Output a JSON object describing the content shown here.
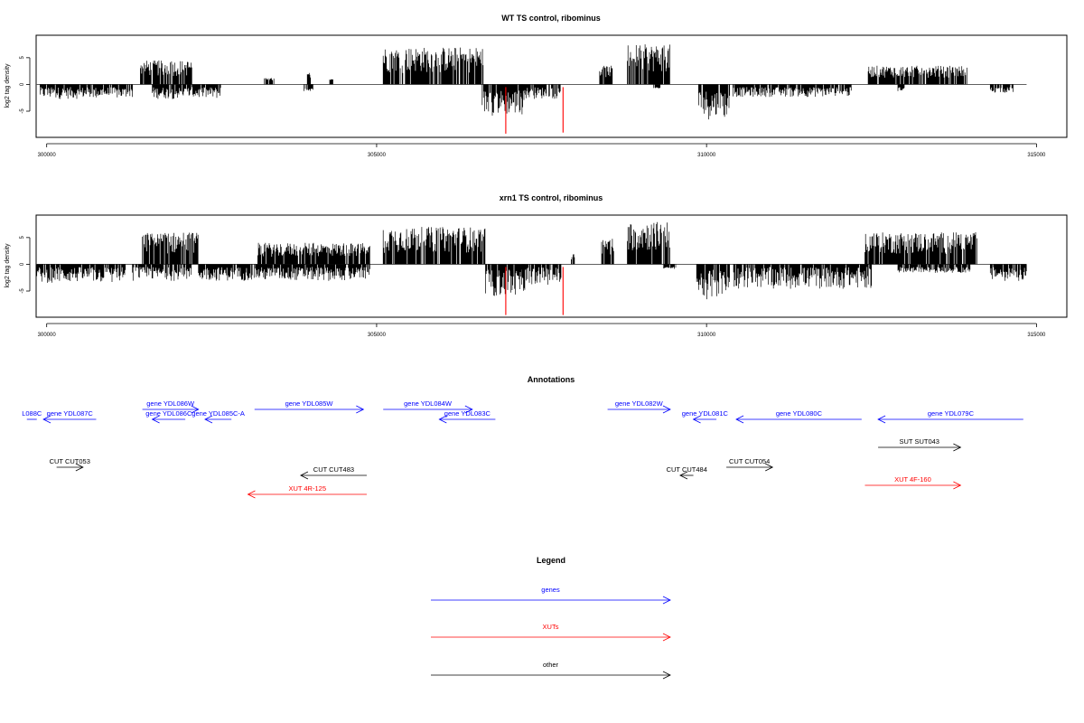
{
  "chart_data": [
    {
      "type": "bar",
      "title": "WT TS control, ribominus",
      "xlabel": "",
      "ylabel": "log2 tag density",
      "xlim": [
        299840,
        315460
      ],
      "ylim": [
        -9.9,
        9.2
      ],
      "x_ticks": [
        "300000",
        "305000",
        "310000",
        "315000"
      ],
      "y_ticks": [
        "-5",
        "0",
        "5"
      ],
      "baseline": {
        "from": 299850,
        "to": 314850
      },
      "series": [
        {
          "color": "#000000",
          "segments": [
            {
              "x": [
                299900,
                301300
              ],
              "min": -3.5,
              "max": -0.5
            },
            {
              "x": [
                301420,
                301700
              ],
              "min": 0.5,
              "max": 4.5
            },
            {
              "x": [
                301700,
                302200
              ],
              "min": 0.5,
              "max": 4.5
            },
            {
              "x": [
                301600,
                302650
              ],
              "min": -3.5,
              "max": -0.5
            },
            {
              "x": [
                303300,
                303450
              ],
              "min": 0.5,
              "max": 1.2
            },
            {
              "x": [
                303950,
                304000
              ],
              "min": 0.5,
              "max": 2.2
            },
            {
              "x": [
                304280,
                304340
              ],
              "min": 0.5,
              "max": 1.0
            },
            {
              "x": [
                303900,
                304040
              ],
              "min": -1.5,
              "max": -0.5
            },
            {
              "x": [
                305100,
                306630
              ],
              "min": 0.5,
              "max": 7.0
            },
            {
              "x": [
                306600,
                307250
              ],
              "min": -7.5,
              "max": -1.0
            },
            {
              "x": [
                307150,
                307800
              ],
              "min": -3.5,
              "max": -0.5
            },
            {
              "x": [
                308380,
                308580
              ],
              "min": 0.5,
              "max": 3.5
            },
            {
              "x": [
                308800,
                309450
              ],
              "min": 0.5,
              "max": 7.5
            },
            {
              "x": [
                309200,
                309300
              ],
              "min": -1.0,
              "max": -0.5
            },
            {
              "x": [
                309880,
                310350
              ],
              "min": -8.5,
              "max": -1.0
            },
            {
              "x": [
                310400,
                312200
              ],
              "min": -3.0,
              "max": -0.5
            },
            {
              "x": [
                312450,
                313950
              ],
              "min": 0.5,
              "max": 3.5
            },
            {
              "x": [
                312900,
                313000
              ],
              "min": -1.5,
              "max": -0.5
            },
            {
              "x": [
                314300,
                314650
              ],
              "min": -2.0,
              "max": -0.5
            }
          ]
        },
        {
          "color": "#ff0000",
          "segments": [
            {
              "x": [
                306950,
                306965
              ],
              "min": -9.2,
              "max": -0.5
            },
            {
              "x": [
                307820,
                307830
              ],
              "min": -9.0,
              "max": -0.5
            }
          ]
        }
      ]
    },
    {
      "type": "bar",
      "title": "xrn1 TS control, ribominus",
      "xlabel": "",
      "ylabel": "log2 tag density",
      "xlim": [
        299840,
        315460
      ],
      "ylim": [
        -9.9,
        9.2
      ],
      "x_ticks": [
        "300000",
        "305000",
        "310000",
        "315000"
      ],
      "y_ticks": [
        "-5",
        "0",
        "5"
      ],
      "baseline": {
        "from": 299850,
        "to": 314850
      },
      "series": [
        {
          "color": "#000000",
          "segments": [
            {
              "x": [
                299850,
                301200
              ],
              "min": -4.5,
              "max": -0.5
            },
            {
              "x": [
                301450,
                302300
              ],
              "min": 0.5,
              "max": 6.0
            },
            {
              "x": [
                301300,
                302200
              ],
              "min": -4.0,
              "max": -0.5
            },
            {
              "x": [
                302300,
                304900
              ],
              "min": -4.0,
              "max": -0.5
            },
            {
              "x": [
                303200,
                304900
              ],
              "min": 0.5,
              "max": 4.0
            },
            {
              "x": [
                305100,
                306650
              ],
              "min": 0.5,
              "max": 7.0
            },
            {
              "x": [
                306650,
                307250
              ],
              "min": -8.0,
              "max": -1.0
            },
            {
              "x": [
                307200,
                307800
              ],
              "min": -5.0,
              "max": -0.5
            },
            {
              "x": [
                307950,
                308000
              ],
              "min": 0.5,
              "max": 2.0
            },
            {
              "x": [
                308400,
                308600
              ],
              "min": 0.5,
              "max": 5.0
            },
            {
              "x": [
                308800,
                309450
              ],
              "min": 0.5,
              "max": 8.0
            },
            {
              "x": [
                309350,
                309550
              ],
              "min": -1.0,
              "max": -0.5
            },
            {
              "x": [
                309850,
                310350
              ],
              "min": -8.5,
              "max": -1.0
            },
            {
              "x": [
                310400,
                312500
              ],
              "min": -6.0,
              "max": -0.5
            },
            {
              "x": [
                312400,
                314100
              ],
              "min": 0.5,
              "max": 6.0
            },
            {
              "x": [
                312900,
                314000
              ],
              "min": -2.0,
              "max": -0.5
            },
            {
              "x": [
                314300,
                314850
              ],
              "min": -4.0,
              "max": -0.5
            }
          ]
        },
        {
          "color": "#ff0000",
          "segments": [
            {
              "x": [
                306950,
                306965
              ],
              "min": -9.5,
              "max": -0.5
            },
            {
              "x": [
                307820,
                307830
              ],
              "min": -9.5,
              "max": -0.5
            }
          ]
        }
      ]
    }
  ],
  "annotations": {
    "title": "Annotations",
    "items": [
      {
        "label": "L088C",
        "color": "#0000ff",
        "x_from": 299700,
        "x_to": 299850,
        "dir": "none",
        "row": 1
      },
      {
        "label": "gene YDL087C",
        "color": "#0000ff",
        "x_from": 300750,
        "x_to": 299950,
        "dir": "left",
        "row": 1
      },
      {
        "label": "gene YDL086W",
        "color": "#0000ff",
        "x_from": 301450,
        "x_to": 302300,
        "dir": "right",
        "row": 0
      },
      {
        "label": "gene YDL086C",
        "color": "#0000ff",
        "x_from": 302100,
        "x_to": 301600,
        "dir": "left",
        "row": 1
      },
      {
        "label": "gene YDL085C-A",
        "color": "#0000ff",
        "x_from": 302800,
        "x_to": 302400,
        "dir": "left",
        "row": 1
      },
      {
        "label": "gene YDL085W",
        "color": "#0000ff",
        "x_from": 303150,
        "x_to": 304800,
        "dir": "right",
        "row": 0
      },
      {
        "label": "gene YDL084W",
        "color": "#0000ff",
        "x_from": 305100,
        "x_to": 306450,
        "dir": "right",
        "row": 0
      },
      {
        "label": "gene YDL083C",
        "color": "#0000ff",
        "x_from": 306800,
        "x_to": 305950,
        "dir": "left",
        "row": 1
      },
      {
        "label": "gene YDL082W",
        "color": "#0000ff",
        "x_from": 308500,
        "x_to": 309450,
        "dir": "right",
        "row": 0
      },
      {
        "label": "gene YDL081C",
        "color": "#0000ff",
        "x_from": 310150,
        "x_to": 309800,
        "dir": "left",
        "row": 1
      },
      {
        "label": "gene YDL080C",
        "color": "#0000ff",
        "x_from": 312350,
        "x_to": 310450,
        "dir": "left",
        "row": 1
      },
      {
        "label": "gene YDL079C",
        "color": "#0000ff",
        "x_from": 314800,
        "x_to": 312600,
        "dir": "left",
        "row": 1
      },
      {
        "label": "SUT SUT043",
        "color": "#000000",
        "x_from": 312600,
        "x_to": 313850,
        "dir": "right",
        "row": 2
      },
      {
        "label": "CUT CUT053",
        "color": "#000000",
        "x_from": 300150,
        "x_to": 300550,
        "dir": "right",
        "row": 3
      },
      {
        "label": "CUT CUT054",
        "color": "#000000",
        "x_from": 310300,
        "x_to": 311000,
        "dir": "right",
        "row": 3
      },
      {
        "label": "CUT CUT483",
        "color": "#000000",
        "x_from": 304850,
        "x_to": 303850,
        "dir": "left",
        "row": 4
      },
      {
        "label": "CUT CUT484",
        "color": "#000000",
        "x_from": 309800,
        "x_to": 309600,
        "dir": "left",
        "row": 4
      },
      {
        "label": "XUT 4F-160",
        "color": "#ff0000",
        "x_from": 312400,
        "x_to": 313850,
        "dir": "right",
        "row": 5
      },
      {
        "label": "XUT 4R-125",
        "color": "#ff0000",
        "x_from": 304850,
        "x_to": 303050,
        "dir": "left",
        "row": 6
      }
    ]
  },
  "legend": {
    "title": "Legend",
    "items": [
      {
        "label": "genes",
        "color": "#0000ff"
      },
      {
        "label": "XUTs",
        "color": "#ff0000"
      },
      {
        "label": "other",
        "color": "#000000"
      }
    ]
  }
}
